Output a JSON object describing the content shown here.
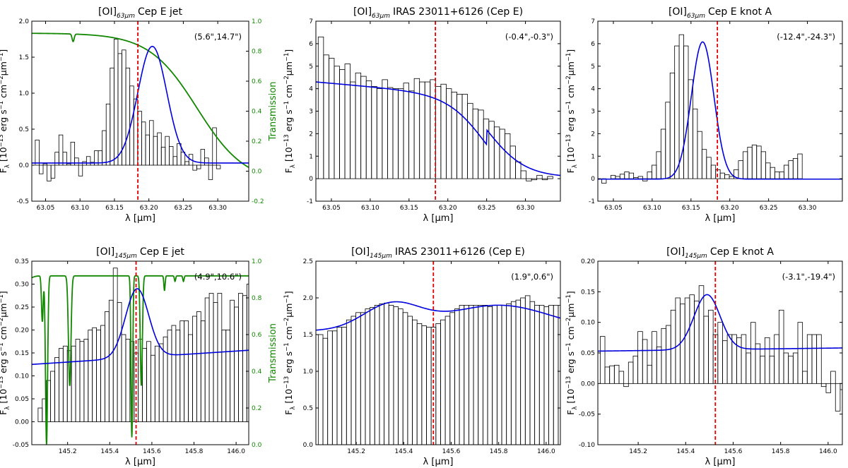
{
  "chart_data": [
    {
      "type": "bar",
      "title": "[OI]$_{63\\mu m}$ Cep E jet",
      "title_prefix": "[OI]",
      "title_sub": "63μm",
      "title_suffix": "Cep E jet",
      "coord_label": "(5.6\",14.7\")",
      "xlabel": "λ [μm]",
      "ylabel": "F_λ [10^-13 erg s^-1 cm^-2 μm^-1]",
      "y2label": "Transmission",
      "xlim": [
        63.03,
        63.345
      ],
      "ylim": [
        -0.5,
        2.0
      ],
      "y2lim": [
        -0.2,
        1.0
      ],
      "xticks": [
        63.05,
        63.1,
        63.15,
        63.2,
        63.25,
        63.3
      ],
      "xtick_labels": [
        "63.05",
        "63.10",
        "63.15",
        "63.20",
        "63.25",
        "63.30"
      ],
      "yticks": [
        -0.5,
        0.0,
        0.5,
        1.0,
        1.5,
        2.0
      ],
      "ytick_labels": [
        "-0.5",
        "0.0",
        "0.5",
        "1.0",
        "1.5",
        "2.0"
      ],
      "y2ticks": [
        -0.2,
        0.0,
        0.2,
        0.4,
        0.6,
        0.8,
        1.0
      ],
      "y2tick_labels": [
        "-0.2",
        "0.0",
        "0.2",
        "0.4",
        "0.6",
        "0.8",
        "1.0"
      ],
      "vline_x": 63.184,
      "bins": {
        "start": 63.035,
        "width": 0.00572,
        "values": [
          0.35,
          -0.12,
          0.02,
          -0.22,
          -0.18,
          0.18,
          0.42,
          0.18,
          0.02,
          0.32,
          0.1,
          -0.15,
          0.05,
          0.12,
          0.04,
          0.2,
          0.2,
          0.48,
          0.85,
          1.35,
          1.75,
          1.55,
          1.6,
          1.35,
          1.1,
          0.92,
          0.75,
          0.6,
          0.42,
          0.62,
          0.4,
          0.45,
          0.25,
          0.4,
          0.26,
          0.12,
          0.3,
          0.18,
          0.05,
          0.15,
          -0.07,
          -0.05,
          0.22,
          0.1,
          -0.2,
          0.52,
          -0.05
        ]
      },
      "fit": {
        "type": "gauss",
        "amp": 1.62,
        "mu": 63.205,
        "sigma": 0.021,
        "offset": 0.03,
        "slope": 0.0
      },
      "transmission": {
        "start": 0.92,
        "end": -0.08,
        "knee": 63.27,
        "width": 0.035,
        "dips": [
          {
            "x": 63.09,
            "depth": 0.05,
            "w": 0.0015
          }
        ]
      }
    },
    {
      "type": "bar",
      "title_prefix": "[OI]",
      "title_sub": "63μm",
      "title_suffix": "IRAS 23011+6126 (Cep E)",
      "coord_label": "(-0.4\",-0.3\")",
      "xlabel": "λ [μm]",
      "ylabel": "F_λ [10^-13 erg s^-1 cm^-2 μm^-1]",
      "xlim": [
        63.03,
        63.345
      ],
      "ylim": [
        -1,
        7
      ],
      "xticks": [
        63.05,
        63.1,
        63.15,
        63.2,
        63.25,
        63.3
      ],
      "xtick_labels": [
        "63.05",
        "63.10",
        "63.15",
        "63.20",
        "63.25",
        "63.30"
      ],
      "yticks": [
        -1,
        0,
        1,
        2,
        3,
        4,
        5,
        6,
        7
      ],
      "ytick_labels": [
        "-1",
        "0",
        "1",
        "2",
        "3",
        "4",
        "5",
        "6",
        "7"
      ],
      "vline_x": 63.184,
      "bins": {
        "start": 63.033,
        "width": 0.00687,
        "values": [
          6.3,
          5.5,
          5.35,
          5.0,
          4.85,
          5.1,
          4.3,
          4.7,
          4.55,
          4.35,
          4.1,
          4.0,
          4.4,
          4.05,
          4.0,
          4.0,
          4.25,
          3.9,
          4.45,
          4.3,
          4.3,
          4.4,
          4.1,
          4.2,
          4.0,
          3.85,
          3.75,
          3.75,
          3.35,
          3.1,
          3.05,
          2.65,
          2.55,
          2.3,
          2.2,
          2.0,
          1.45,
          0.75,
          0.35,
          -0.1,
          -0.05,
          0.15,
          -0.05,
          0.1
        ]
      },
      "fit": {
        "type": "sigmoid",
        "top": 4.3,
        "bottom": 0.05,
        "x0": 63.25,
        "w": 0.025,
        "slope": -3.0
      }
    },
    {
      "type": "bar",
      "title_prefix": "[OI]",
      "title_sub": "63μm",
      "title_suffix": "Cep E knot A",
      "coord_label": "(-12.4\",-24.3\")",
      "xlabel": "λ [μm]",
      "ylabel": "F_λ [10^-13 erg s^-1 cm^-2 μm^-1]",
      "xlim": [
        63.03,
        63.345
      ],
      "ylim": [
        -1,
        7
      ],
      "xticks": [
        63.05,
        63.1,
        63.15,
        63.2,
        63.25,
        63.3
      ],
      "xtick_labels": [
        "63.05",
        "63.10",
        "63.15",
        "63.20",
        "63.25",
        "63.30"
      ],
      "yticks": [
        -1,
        0,
        1,
        2,
        3,
        4,
        5,
        6,
        7
      ],
      "ytick_labels": [
        "-1",
        "0",
        "1",
        "2",
        "3",
        "4",
        "5",
        "6",
        "7"
      ],
      "vline_x": 63.184,
      "bins": {
        "start": 63.035,
        "width": 0.00587,
        "values": [
          -0.2,
          0.0,
          0.15,
          0.1,
          0.2,
          0.3,
          0.25,
          0.05,
          0.1,
          -0.1,
          0.3,
          0.6,
          1.2,
          2.2,
          3.4,
          4.7,
          5.9,
          6.4,
          5.9,
          4.4,
          3.1,
          2.1,
          1.3,
          0.95,
          0.6,
          0.4,
          0.25,
          0.18,
          0.1,
          0.4,
          0.8,
          1.2,
          1.4,
          1.5,
          1.45,
          1.2,
          0.7,
          0.5,
          0.3,
          0.3,
          0.6,
          0.8,
          0.9,
          1.1
        ]
      },
      "fit": {
        "type": "gauss",
        "amp": 6.1,
        "mu": 63.165,
        "sigma": 0.0145,
        "offset": -0.02,
        "slope": 0.0
      }
    },
    {
      "type": "bar",
      "title_prefix": "[OI]",
      "title_sub": "145μm",
      "title_suffix": "Cep E jet",
      "coord_label": "(4.9\",10.6\")",
      "xlabel": "λ [μm]",
      "ylabel": "F_λ [10^-13 erg s^-1 cm^-2 μm^-1]",
      "y2label": "Transmission",
      "xlim": [
        145.03,
        146.06
      ],
      "ylim": [
        -0.05,
        0.35
      ],
      "y2lim": [
        0.0,
        1.0
      ],
      "xticks": [
        145.2,
        145.4,
        145.6,
        145.8,
        146.0
      ],
      "xtick_labels": [
        "145.2",
        "145.4",
        "145.6",
        "145.8",
        "146.0"
      ],
      "yticks": [
        -0.05,
        0.0,
        0.05,
        0.1,
        0.15,
        0.2,
        0.25,
        0.3,
        0.35
      ],
      "ytick_labels": [
        "-0.05",
        "0.00",
        "0.05",
        "0.10",
        "0.15",
        "0.20",
        "0.25",
        "0.30",
        "0.35"
      ],
      "y2ticks": [
        0.0,
        0.2,
        0.4,
        0.6,
        0.8,
        1.0
      ],
      "y2tick_labels": [
        "0.0",
        "0.2",
        "0.4",
        "0.6",
        "0.8",
        "1.0"
      ],
      "vline_x": 145.525,
      "bins": {
        "start": 145.04,
        "width": 0.01982,
        "values": [
          0.0,
          0.03,
          0.05,
          0.09,
          0.11,
          0.14,
          0.16,
          0.165,
          0.155,
          0.165,
          0.18,
          0.175,
          0.18,
          0.2,
          0.205,
          0.2,
          0.21,
          0.24,
          0.265,
          0.335,
          0.26,
          0.19,
          0.18,
          0.175,
          0.15,
          0.18,
          0.16,
          0.175,
          0.145,
          0.165,
          0.17,
          0.185,
          0.2,
          0.21,
          0.2,
          0.22,
          0.22,
          0.19,
          0.23,
          0.24,
          0.22,
          0.27,
          0.28,
          0.26,
          0.28,
          0.2,
          0.2,
          0.265,
          0.25,
          0.28,
          0.275,
          0.3
        ]
      },
      "fit": {
        "type": "gauss",
        "amp": 0.15,
        "mu": 145.53,
        "sigma": 0.055,
        "offset": 0.125,
        "slope": 0.03
      },
      "transmission": {
        "start": 0.9,
        "end": 0.92,
        "knee": 145.03,
        "width": 0.01,
        "dips": [
          {
            "x": 145.1,
            "depth": 0.92,
            "w": 0.005
          },
          {
            "x": 145.08,
            "depth": 0.25,
            "w": 0.004
          },
          {
            "x": 145.21,
            "depth": 0.6,
            "w": 0.006
          },
          {
            "x": 145.505,
            "depth": 0.88,
            "w": 0.004
          },
          {
            "x": 145.55,
            "depth": 0.6,
            "w": 0.005
          },
          {
            "x": 145.66,
            "depth": 0.08,
            "w": 0.003
          },
          {
            "x": 145.71,
            "depth": 0.03,
            "w": 0.003
          },
          {
            "x": 145.75,
            "depth": 0.03,
            "w": 0.003
          }
        ]
      }
    },
    {
      "type": "bar",
      "title_prefix": "[OI]",
      "title_sub": "145μm",
      "title_suffix": "IRAS 23011+6126 (Cep E)",
      "coord_label": "(1.9\",0.6\")",
      "xlabel": "λ [μm]",
      "ylabel": "F_λ [10^-13 erg s^-1 cm^-2 μm^-1]",
      "xlim": [
        145.03,
        146.06
      ],
      "ylim": [
        0.0,
        2.5
      ],
      "xticks": [
        145.2,
        145.4,
        145.6,
        145.8,
        146.0
      ],
      "xtick_labels": [
        "145.2",
        "145.4",
        "145.6",
        "145.8",
        "146.0"
      ],
      "yticks": [
        0.0,
        0.5,
        1.0,
        1.5,
        2.0,
        2.5
      ],
      "ytick_labels": [
        "0.0",
        "0.5",
        "1.0",
        "1.5",
        "2.0",
        "2.5"
      ],
      "vline_x": 145.525,
      "bins": {
        "start": 145.04,
        "width": 0.01982,
        "values": [
          1.5,
          1.45,
          1.55,
          1.55,
          1.6,
          1.6,
          1.7,
          1.75,
          1.8,
          1.8,
          1.85,
          1.87,
          1.9,
          1.92,
          1.93,
          1.9,
          1.88,
          1.85,
          1.8,
          1.75,
          1.7,
          1.65,
          1.62,
          1.6,
          1.6,
          1.65,
          1.7,
          1.75,
          1.8,
          1.85,
          1.9,
          1.9,
          1.9,
          1.9,
          1.9,
          1.9,
          1.88,
          1.9,
          1.9,
          1.9,
          1.92,
          1.95,
          1.97,
          2.0,
          2.03,
          1.95,
          1.9,
          1.9,
          1.88,
          1.9,
          1.9,
          1.9
        ]
      },
      "fit": {
        "type": "double",
        "base": 1.55,
        "a1": 0.35,
        "m1": 145.35,
        "s1": 0.12,
        "a2": 0.35,
        "m2": 145.8,
        "s2": 0.22,
        "slope": 0.0
      }
    },
    {
      "type": "bar",
      "title_prefix": "[OI]",
      "title_sub": "145μm",
      "title_suffix": "Cep E knot A",
      "coord_label": "(-3.1\",-19.4\")",
      "xlabel": "λ [μm]",
      "ylabel": "F_λ [10^-13 erg s^-1 cm^-2 μm^-1]",
      "xlim": [
        145.03,
        146.06
      ],
      "ylim": [
        -0.1,
        0.2
      ],
      "xticks": [
        145.2,
        145.4,
        145.6,
        145.8,
        146.0
      ],
      "xtick_labels": [
        "145.2",
        "145.4",
        "145.6",
        "145.8",
        "146.0"
      ],
      "yticks": [
        -0.1,
        -0.05,
        0.0,
        0.05,
        0.1,
        0.15,
        0.2
      ],
      "ytick_labels": [
        "-0.10",
        "-0.05",
        "0.00",
        "0.05",
        "0.10",
        "0.15",
        "0.20"
      ],
      "vline_x": 145.525,
      "bins": {
        "start": 145.04,
        "width": 0.01982,
        "values": [
          0.077,
          0.027,
          0.029,
          0.03,
          0.02,
          -0.005,
          0.035,
          0.045,
          0.085,
          0.072,
          0.03,
          0.085,
          0.06,
          0.09,
          0.095,
          0.12,
          0.14,
          0.13,
          0.14,
          0.145,
          0.135,
          0.16,
          0.11,
          0.12,
          0.08,
          0.1,
          0.07,
          0.08,
          0.08,
          0.075,
          0.08,
          0.05,
          0.1,
          0.065,
          0.045,
          0.075,
          0.045,
          0.08,
          0.12,
          0.05,
          0.045,
          0.05,
          0.1,
          0.02,
          0.08,
          0.08,
          0.08,
          -0.005,
          -0.015,
          0.02,
          -0.045,
          -0.01
        ]
      },
      "fit": {
        "type": "gauss",
        "amp": 0.09,
        "mu": 145.49,
        "sigma": 0.055,
        "offset": 0.053,
        "slope": 0.005
      }
    }
  ]
}
